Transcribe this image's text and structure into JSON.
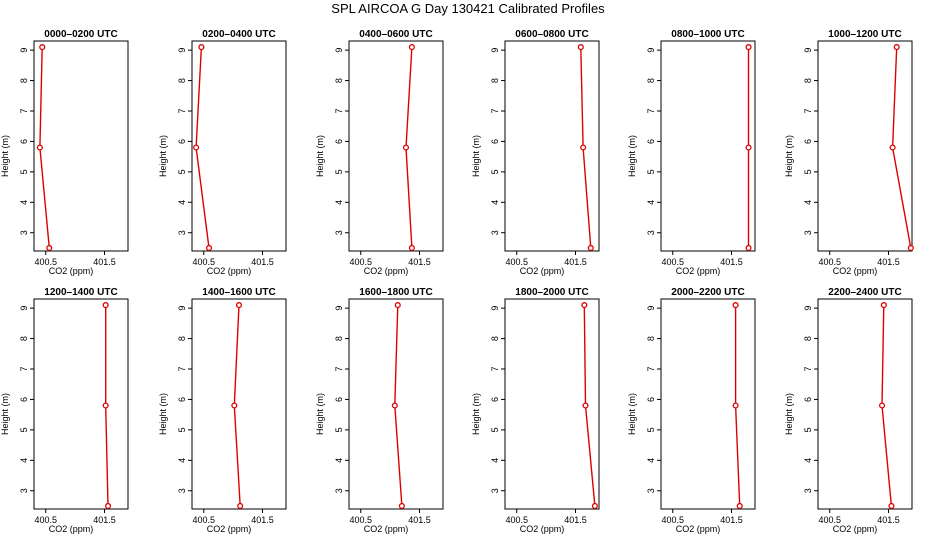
{
  "title": "SPL AIRCOA G  Day 130421  Calibrated Profiles",
  "chart_data": [
    {
      "type": "line",
      "title": "0000–0200 UTC",
      "xlabel": "CO2 (ppm)",
      "ylabel": "Height (m)",
      "xlim": [
        400.3,
        401.9
      ],
      "ylim": [
        2.4,
        9.3
      ],
      "xticks": [
        "400.5",
        "401.5"
      ],
      "yticks": [
        "3",
        "4",
        "5",
        "6",
        "7",
        "8",
        "9"
      ],
      "series": [
        {
          "color": "#dd0000",
          "points": [
            {
              "x": 400.56,
              "y": 2.5
            },
            {
              "x": 400.4,
              "y": 5.8
            },
            {
              "x": 400.44,
              "y": 9.1
            }
          ]
        }
      ]
    },
    {
      "type": "line",
      "title": "0200–0400 UTC",
      "xlabel": "CO2 (ppm)",
      "ylabel": "Height (m)",
      "xlim": [
        400.3,
        401.9
      ],
      "ylim": [
        2.4,
        9.3
      ],
      "xticks": [
        "400.5",
        "401.5"
      ],
      "yticks": [
        "3",
        "4",
        "5",
        "6",
        "7",
        "8",
        "9"
      ],
      "series": [
        {
          "color": "#dd0000",
          "points": [
            {
              "x": 400.59,
              "y": 2.5
            },
            {
              "x": 400.37,
              "y": 5.8
            },
            {
              "x": 400.46,
              "y": 9.1
            }
          ]
        }
      ]
    },
    {
      "type": "line",
      "title": "0400–0600 UTC",
      "xlabel": "CO2 (ppm)",
      "ylabel": "Height (m)",
      "xlim": [
        400.3,
        401.9
      ],
      "ylim": [
        2.4,
        9.3
      ],
      "xticks": [
        "400.5",
        "401.5"
      ],
      "yticks": [
        "3",
        "4",
        "5",
        "6",
        "7",
        "8",
        "9"
      ],
      "series": [
        {
          "color": "#dd0000",
          "points": [
            {
              "x": 401.37,
              "y": 2.5
            },
            {
              "x": 401.27,
              "y": 5.8
            },
            {
              "x": 401.37,
              "y": 9.1
            }
          ]
        }
      ]
    },
    {
      "type": "line",
      "title": "0600–0800 UTC",
      "xlabel": "CO2 (ppm)",
      "ylabel": "Height (m)",
      "xlim": [
        400.3,
        401.9
      ],
      "ylim": [
        2.4,
        9.3
      ],
      "xticks": [
        "400.5",
        "401.5"
      ],
      "yticks": [
        "3",
        "4",
        "5",
        "6",
        "7",
        "8",
        "9"
      ],
      "series": [
        {
          "color": "#dd0000",
          "points": [
            {
              "x": 401.76,
              "y": 2.5
            },
            {
              "x": 401.63,
              "y": 5.8
            },
            {
              "x": 401.59,
              "y": 9.1
            }
          ]
        }
      ]
    },
    {
      "type": "line",
      "title": "0800–1000 UTC",
      "xlabel": "CO2 (ppm)",
      "ylabel": "Height (m)",
      "xlim": [
        400.3,
        401.9
      ],
      "ylim": [
        2.4,
        9.3
      ],
      "xticks": [
        "400.5",
        "401.5"
      ],
      "yticks": [
        "3",
        "4",
        "5",
        "6",
        "7",
        "8",
        "9"
      ],
      "series": [
        {
          "color": "#dd0000",
          "points": [
            {
              "x": 401.79,
              "y": 2.5
            },
            {
              "x": 401.79,
              "y": 5.8
            },
            {
              "x": 401.79,
              "y": 9.1
            }
          ]
        }
      ]
    },
    {
      "type": "line",
      "title": "1000–1200 UTC",
      "xlabel": "CO2 (ppm)",
      "ylabel": "Height (m)",
      "xlim": [
        400.3,
        401.9
      ],
      "ylim": [
        2.4,
        9.3
      ],
      "xticks": [
        "400.5",
        "401.5"
      ],
      "yticks": [
        "3",
        "4",
        "5",
        "6",
        "7",
        "8",
        "9"
      ],
      "series": [
        {
          "color": "#dd0000",
          "points": [
            {
              "x": 401.88,
              "y": 2.5
            },
            {
              "x": 401.57,
              "y": 5.8
            },
            {
              "x": 401.64,
              "y": 9.1
            }
          ]
        }
      ]
    },
    {
      "type": "line",
      "title": "1200–1400 UTC",
      "xlabel": "CO2 (ppm)",
      "ylabel": "Height (m)",
      "xlim": [
        400.3,
        401.9
      ],
      "ylim": [
        2.4,
        9.3
      ],
      "xticks": [
        "400.5",
        "401.5"
      ],
      "yticks": [
        "3",
        "4",
        "5",
        "6",
        "7",
        "8",
        "9"
      ],
      "series": [
        {
          "color": "#dd0000",
          "points": [
            {
              "x": 401.56,
              "y": 2.5
            },
            {
              "x": 401.52,
              "y": 5.8
            },
            {
              "x": 401.52,
              "y": 9.1
            }
          ]
        }
      ]
    },
    {
      "type": "line",
      "title": "1400–1600 UTC",
      "xlabel": "CO2 (ppm)",
      "ylabel": "Height (m)",
      "xlim": [
        400.3,
        401.9
      ],
      "ylim": [
        2.4,
        9.3
      ],
      "xticks": [
        "400.5",
        "401.5"
      ],
      "yticks": [
        "3",
        "4",
        "5",
        "6",
        "7",
        "8",
        "9"
      ],
      "series": [
        {
          "color": "#dd0000",
          "points": [
            {
              "x": 401.12,
              "y": 2.5
            },
            {
              "x": 401.02,
              "y": 5.8
            },
            {
              "x": 401.1,
              "y": 9.1
            }
          ]
        }
      ]
    },
    {
      "type": "line",
      "title": "1600–1800 UTC",
      "xlabel": "CO2 (ppm)",
      "ylabel": "Height (m)",
      "xlim": [
        400.3,
        401.9
      ],
      "ylim": [
        2.4,
        9.3
      ],
      "xticks": [
        "400.5",
        "401.5"
      ],
      "yticks": [
        "3",
        "4",
        "5",
        "6",
        "7",
        "8",
        "9"
      ],
      "series": [
        {
          "color": "#dd0000",
          "points": [
            {
              "x": 401.2,
              "y": 2.5
            },
            {
              "x": 401.08,
              "y": 5.8
            },
            {
              "x": 401.13,
              "y": 9.1
            }
          ]
        }
      ]
    },
    {
      "type": "line",
      "title": "1800–2000 UTC",
      "xlabel": "CO2 (ppm)",
      "ylabel": "Height (m)",
      "xlim": [
        400.3,
        401.9
      ],
      "ylim": [
        2.4,
        9.3
      ],
      "xticks": [
        "400.5",
        "401.5"
      ],
      "yticks": [
        "3",
        "4",
        "5",
        "6",
        "7",
        "8",
        "9"
      ],
      "series": [
        {
          "color": "#dd0000",
          "points": [
            {
              "x": 401.83,
              "y": 2.5
            },
            {
              "x": 401.67,
              "y": 5.8
            },
            {
              "x": 401.65,
              "y": 9.1
            }
          ]
        }
      ]
    },
    {
      "type": "line",
      "title": "2000–2200 UTC",
      "xlabel": "CO2 (ppm)",
      "ylabel": "Height (m)",
      "xlim": [
        400.3,
        401.9
      ],
      "ylim": [
        2.4,
        9.3
      ],
      "xticks": [
        "400.5",
        "401.5"
      ],
      "yticks": [
        "3",
        "4",
        "5",
        "6",
        "7",
        "8",
        "9"
      ],
      "series": [
        {
          "color": "#dd0000",
          "points": [
            {
              "x": 401.64,
              "y": 2.5
            },
            {
              "x": 401.57,
              "y": 5.8
            },
            {
              "x": 401.57,
              "y": 9.1
            }
          ]
        }
      ]
    },
    {
      "type": "line",
      "title": "2200–2400 UTC",
      "xlabel": "CO2 (ppm)",
      "ylabel": "Height (m)",
      "xlim": [
        400.3,
        401.9
      ],
      "ylim": [
        2.4,
        9.3
      ],
      "xticks": [
        "400.5",
        "401.5"
      ],
      "yticks": [
        "3",
        "4",
        "5",
        "6",
        "7",
        "8",
        "9"
      ],
      "series": [
        {
          "color": "#dd0000",
          "points": [
            {
              "x": 401.55,
              "y": 2.5
            },
            {
              "x": 401.39,
              "y": 5.8
            },
            {
              "x": 401.42,
              "y": 9.1
            }
          ]
        }
      ]
    }
  ]
}
